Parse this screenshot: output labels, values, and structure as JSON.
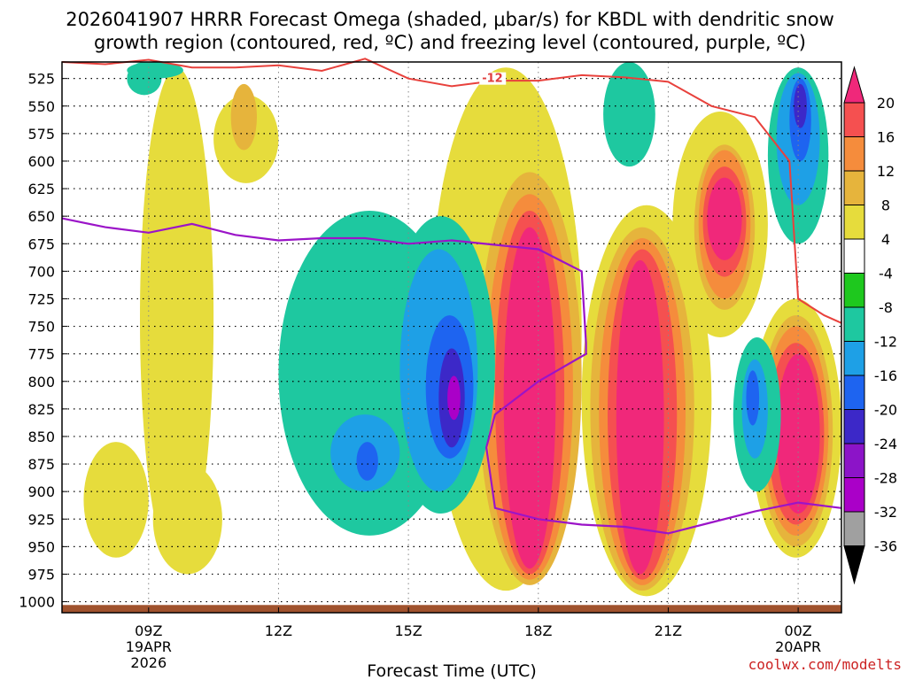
{
  "chart_data": {
    "type": "heatmap",
    "title_line1": "2026041907 HRRR Forecast Omega (shaded, μbar/s) for KBDL with dendritic snow",
    "title_line2": "growth region (contoured, red, ºC) and freezing level (contoured, purple, ºC)",
    "xlabel": "Forecast Time (UTC)",
    "credit": "coolwx.com/modelts",
    "x_range_hours": [
      7,
      25
    ],
    "y_range_hpa": [
      510,
      1010
    ],
    "x_ticks": [
      {
        "hour": 9,
        "label": "09Z",
        "date": "19APR",
        "year": "2026"
      },
      {
        "hour": 12,
        "label": "12Z",
        "date": "",
        "year": ""
      },
      {
        "hour": 15,
        "label": "15Z",
        "date": "",
        "year": ""
      },
      {
        "hour": 18,
        "label": "18Z",
        "date": "",
        "year": ""
      },
      {
        "hour": 21,
        "label": "21Z",
        "date": "",
        "year": ""
      },
      {
        "hour": 24,
        "label": "00Z",
        "date": "20APR",
        "year": ""
      }
    ],
    "y_ticks": [
      525,
      550,
      575,
      600,
      625,
      650,
      675,
      700,
      725,
      750,
      775,
      800,
      825,
      850,
      875,
      900,
      925,
      950,
      975,
      1000
    ],
    "colorbar": {
      "levels": [
        20,
        16,
        12,
        8,
        4,
        -4,
        -8,
        -12,
        -16,
        -20,
        -24,
        -28,
        -32,
        -36
      ],
      "colors": [
        "#f0287a",
        "#f55050",
        "#f58c3c",
        "#e6b43c",
        "#e6dc3c",
        "#ffffff",
        "#1ec81e",
        "#1ec8a0",
        "#1ea0e6",
        "#1e64f0",
        "#3c28c8",
        "#8c14c8",
        "#aa00c8",
        "#a0a0a0",
        "#000000"
      ]
    },
    "dgz_label": "-12",
    "omega_regions": [
      {
        "level": 4,
        "hours": [
          8.8,
          10.5
        ],
        "pressure": [
          515,
          970
        ]
      },
      {
        "level": 4,
        "hours": [
          10.5,
          12.0
        ],
        "pressure": [
          540,
          620
        ]
      },
      {
        "level": 8,
        "hours": [
          10.9,
          11.5
        ],
        "pressure": [
          530,
          590
        ]
      },
      {
        "level": 4,
        "hours": [
          7.5,
          9.0
        ],
        "pressure": [
          855,
          960
        ]
      },
      {
        "level": 4,
        "hours": [
          9.1,
          10.7
        ],
        "pressure": [
          875,
          975
        ]
      },
      {
        "level": 4,
        "hours": [
          15.5,
          19.0
        ],
        "pressure": [
          515,
          990
        ]
      },
      {
        "level": 8,
        "hours": [
          16.6,
          19.0
        ],
        "pressure": [
          610,
          985
        ]
      },
      {
        "level": 12,
        "hours": [
          16.8,
          18.8
        ],
        "pressure": [
          630,
          980
        ]
      },
      {
        "level": 16,
        "hours": [
          17.0,
          18.6
        ],
        "pressure": [
          645,
          975
        ]
      },
      {
        "level": 20,
        "hours": [
          17.2,
          18.4
        ],
        "pressure": [
          660,
          970
        ]
      },
      {
        "level": 4,
        "hours": [
          19.0,
          22.0
        ],
        "pressure": [
          640,
          995
        ]
      },
      {
        "level": 8,
        "hours": [
          19.2,
          21.6
        ],
        "pressure": [
          660,
          990
        ]
      },
      {
        "level": 12,
        "hours": [
          19.4,
          21.4
        ],
        "pressure": [
          670,
          985
        ]
      },
      {
        "level": 16,
        "hours": [
          19.6,
          21.2
        ],
        "pressure": [
          680,
          980
        ]
      },
      {
        "level": 20,
        "hours": [
          19.8,
          20.9
        ],
        "pressure": [
          690,
          975
        ]
      },
      {
        "level": 4,
        "hours": [
          21.1,
          23.3
        ],
        "pressure": [
          555,
          760
        ]
      },
      {
        "level": 8,
        "hours": [
          21.6,
          23.0
        ],
        "pressure": [
          585,
          735
        ]
      },
      {
        "level": 12,
        "hours": [
          21.7,
          22.9
        ],
        "pressure": [
          590,
          725
        ]
      },
      {
        "level": 16,
        "hours": [
          21.8,
          22.8
        ],
        "pressure": [
          605,
          705
        ]
      },
      {
        "level": 20,
        "hours": [
          21.9,
          22.7
        ],
        "pressure": [
          615,
          690
        ]
      },
      {
        "level": 4,
        "hours": [
          22.9,
          25.0
        ],
        "pressure": [
          725,
          960
        ]
      },
      {
        "level": 8,
        "hours": [
          23.1,
          24.8
        ],
        "pressure": [
          740,
          950
        ]
      },
      {
        "level": 12,
        "hours": [
          23.2,
          24.7
        ],
        "pressure": [
          750,
          940
        ]
      },
      {
        "level": 16,
        "hours": [
          23.3,
          24.6
        ],
        "pressure": [
          765,
          930
        ]
      },
      {
        "level": 20,
        "hours": [
          23.5,
          24.5
        ],
        "pressure": [
          775,
          920
        ]
      },
      {
        "level": -8,
        "hours": [
          12.0,
          16.2
        ],
        "pressure": [
          645,
          940
        ]
      },
      {
        "level": -8,
        "hours": [
          14.5,
          17.0
        ],
        "pressure": [
          650,
          920
        ]
      },
      {
        "level": -12,
        "hours": [
          14.8,
          16.6
        ],
        "pressure": [
          680,
          900
        ]
      },
      {
        "level": -16,
        "hours": [
          15.4,
          16.5
        ],
        "pressure": [
          740,
          870
        ]
      },
      {
        "level": -20,
        "hours": [
          15.7,
          16.3
        ],
        "pressure": [
          770,
          860
        ]
      },
      {
        "level": -28,
        "hours": [
          15.9,
          16.2
        ],
        "pressure": [
          795,
          835
        ]
      },
      {
        "level": -12,
        "hours": [
          13.2,
          14.8
        ],
        "pressure": [
          830,
          900
        ]
      },
      {
        "level": -16,
        "hours": [
          13.8,
          14.3
        ],
        "pressure": [
          855,
          890
        ]
      },
      {
        "level": -8,
        "hours": [
          22.5,
          23.6
        ],
        "pressure": [
          760,
          900
        ]
      },
      {
        "level": -12,
        "hours": [
          22.7,
          23.3
        ],
        "pressure": [
          780,
          870
        ]
      },
      {
        "level": -16,
        "hours": [
          22.8,
          23.1
        ],
        "pressure": [
          790,
          840
        ]
      },
      {
        "level": -8,
        "hours": [
          23.3,
          24.7
        ],
        "pressure": [
          515,
          675
        ]
      },
      {
        "level": -12,
        "hours": [
          23.5,
          24.5
        ],
        "pressure": [
          520,
          640
        ]
      },
      {
        "level": -16,
        "hours": [
          23.8,
          24.3
        ],
        "pressure": [
          525,
          600
        ]
      },
      {
        "level": -20,
        "hours": [
          23.9,
          24.2
        ],
        "pressure": [
          530,
          570
        ]
      },
      {
        "level": -8,
        "hours": [
          8.5,
          9.3
        ],
        "pressure": [
          510,
          540
        ]
      },
      {
        "level": -8,
        "hours": [
          19.5,
          20.7
        ],
        "pressure": [
          510,
          605
        ]
      },
      {
        "level": -8,
        "hours": [
          8.5,
          9.8
        ],
        "pressure": [
          510,
          525
        ]
      }
    ],
    "dgz_contour": {
      "hours": [
        7,
        8,
        9,
        10,
        11,
        12,
        13,
        14,
        15,
        16,
        17,
        18,
        19,
        20,
        21,
        22,
        23,
        23.8,
        24,
        24.6,
        25
      ],
      "pressure": [
        510,
        512,
        508,
        515,
        515,
        513,
        518,
        507,
        525,
        532,
        527,
        527,
        522,
        524,
        528,
        550,
        560,
        600,
        725,
        740,
        747
      ]
    },
    "freezing_contour": {
      "hours": [
        7,
        8,
        9,
        10,
        11,
        12,
        13,
        14,
        15,
        16,
        17,
        18,
        19,
        19.1,
        19.1,
        18,
        17,
        16.8,
        17,
        18,
        19,
        20,
        21,
        22,
        23,
        24,
        25
      ],
      "pressure": [
        652,
        660,
        665,
        657,
        667,
        672,
        670,
        670,
        675,
        672,
        676,
        680,
        700,
        765,
        775,
        800,
        830,
        860,
        915,
        925,
        930,
        932,
        938,
        928,
        918,
        910,
        915
      ]
    }
  }
}
